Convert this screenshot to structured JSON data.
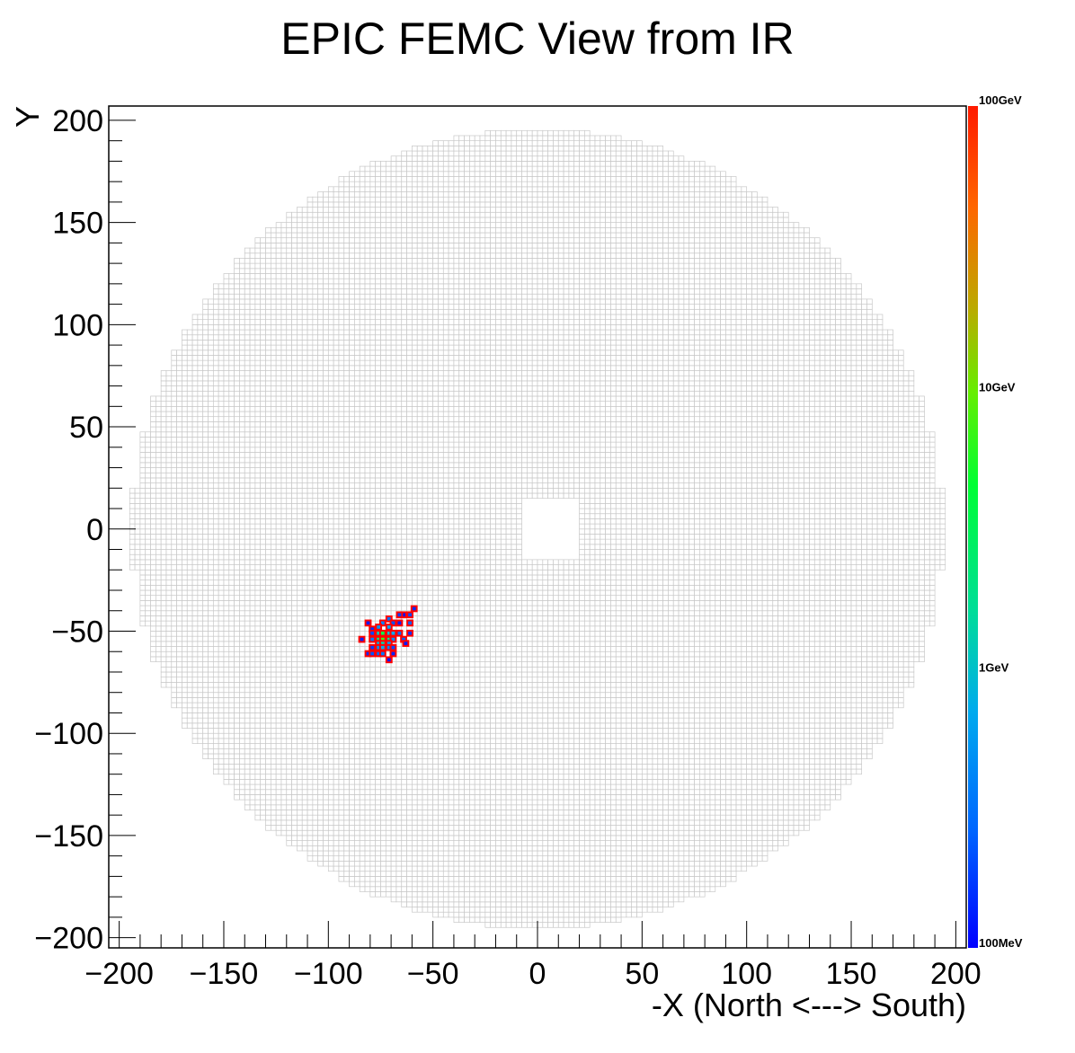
{
  "title": "EPIC FEMC View from IR",
  "chart_data": {
    "type": "heatmap",
    "title": "EPIC FEMC View from IR",
    "xlabel": "-X (North <---> South)",
    "ylabel": "Y",
    "xlim": [
      -205,
      205
    ],
    "ylim": [
      -205,
      207
    ],
    "x_ticks": [
      -200,
      -150,
      -100,
      -50,
      0,
      50,
      100,
      150,
      200
    ],
    "x_tick_labels": [
      "−200",
      "−150",
      "−100",
      "−50",
      "0",
      "50",
      "100",
      "150",
      "200"
    ],
    "y_ticks": [
      -200,
      -150,
      -100,
      -50,
      0,
      50,
      100,
      150,
      200
    ],
    "y_tick_labels": [
      "−200",
      "−150",
      "−100",
      "−50",
      "0",
      "50",
      "100",
      "150",
      "200"
    ],
    "grid": false,
    "cell_size": 2.5,
    "detector_radius": 196,
    "beam_hole": {
      "x": [
        -8,
        20
      ],
      "y": [
        -15,
        15
      ]
    },
    "colorbar": {
      "scale": "log",
      "range_gev": [
        0.1,
        100
      ],
      "labels": [
        "100GeV",
        "10GeV",
        "1GeV",
        "100MeV"
      ],
      "label_values_gev": [
        100,
        10,
        1,
        0.1
      ]
    },
    "colors": {
      "grid_line": "#c8c8c8",
      "hit_border": "#ff0000",
      "hit_fill": "#0000ff"
    },
    "hits": [
      [
        -59,
        -39,
        0.15
      ],
      [
        -61,
        -42,
        0.2
      ],
      [
        -64,
        -42,
        0.12
      ],
      [
        -66,
        -42,
        0.18
      ],
      [
        -61,
        -46,
        0.25
      ],
      [
        -71,
        -44,
        0.3
      ],
      [
        -69,
        -46,
        0.22
      ],
      [
        -74,
        -46,
        0.4
      ],
      [
        -66,
        -46,
        0.14
      ],
      [
        -76,
        -48,
        0.5
      ],
      [
        -71,
        -48,
        0.6
      ],
      [
        -81,
        -46,
        0.13
      ],
      [
        -79,
        -49,
        0.16
      ],
      [
        -79,
        -51,
        0.2
      ],
      [
        -76,
        -51,
        1.2
      ],
      [
        -74,
        -51,
        3.5
      ],
      [
        -71,
        -51,
        0.9
      ],
      [
        -69,
        -51,
        0.7
      ],
      [
        -66,
        -51,
        0.3
      ],
      [
        -61,
        -51,
        0.16
      ],
      [
        -84,
        -54,
        0.14
      ],
      [
        -79,
        -54,
        0.35
      ],
      [
        -76,
        -54,
        2.1
      ],
      [
        -74,
        -54,
        6.5
      ],
      [
        -71,
        -54,
        1.8
      ],
      [
        -69,
        -54,
        0.45
      ],
      [
        -64,
        -54,
        0.25
      ],
      [
        -63,
        -56,
        0.13
      ],
      [
        -76,
        -56,
        0.8
      ],
      [
        -74,
        -56,
        1.4
      ],
      [
        -71,
        -56,
        0.6
      ],
      [
        -79,
        -58,
        0.18
      ],
      [
        -76,
        -58,
        0.5
      ],
      [
        -74,
        -58,
        0.7
      ],
      [
        -71,
        -58,
        0.4
      ],
      [
        -69,
        -58,
        0.2
      ],
      [
        -81,
        -61,
        0.15
      ],
      [
        -79,
        -61,
        0.22
      ],
      [
        -76,
        -61,
        0.3
      ],
      [
        -74,
        -61,
        0.35
      ],
      [
        -69,
        -61,
        0.14
      ],
      [
        -71,
        -64,
        0.12
      ]
    ]
  }
}
